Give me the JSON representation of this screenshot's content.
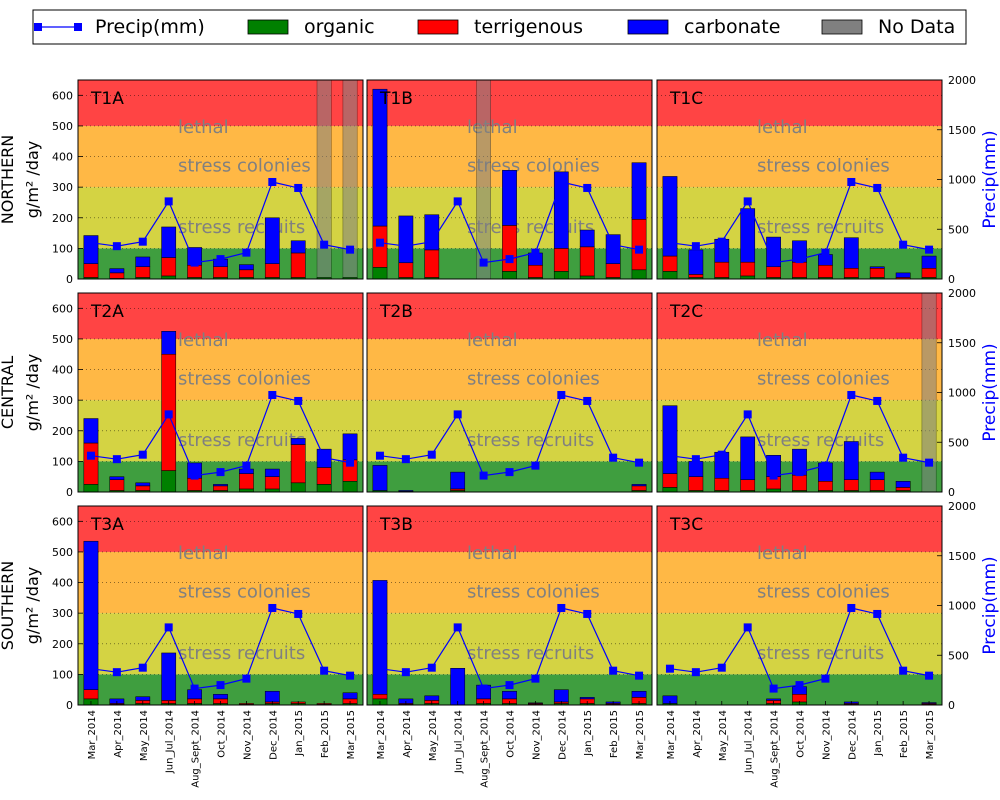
{
  "colors": {
    "lethal": "#ff4444",
    "stress_colonies": "#ffb845",
    "stress_recruits": "#d4d343",
    "ok": "#3f9e3f",
    "organic": "#008000",
    "terrigenous": "#ff0000",
    "carbonate": "#0000ff",
    "precip": "#0000ff",
    "nodata": "#808080",
    "zone_text": "#808080"
  },
  "legend": {
    "items": [
      {
        "key": "precip",
        "label": "Precip(mm)"
      },
      {
        "key": "organic",
        "label": "organic"
      },
      {
        "key": "terrigenous",
        "label": "terrigenous"
      },
      {
        "key": "carbonate",
        "label": "carbonate"
      },
      {
        "key": "nodata",
        "label": "No Data"
      }
    ]
  },
  "zones": {
    "lethal": "lethal",
    "stress_colonies": "stress colonies",
    "stress_recruits": "stress recruits"
  },
  "row_labels": [
    "NORTHERN",
    "CENTRAL",
    "SOUTHERN"
  ],
  "y_label": "g/m² /day",
  "y2_label": "Precip(mm)",
  "chart_data": {
    "type": "bar",
    "categories": [
      "Mar_2014",
      "Apr_2014",
      "May_2014",
      "Jun_Jul_2014",
      "Aug_Sept_2014",
      "Oct_2014",
      "Nov_2014",
      "Dec_2014",
      "Jan_2015",
      "Feb_2015",
      "Mar_2015"
    ],
    "ylim": [
      0,
      650
    ],
    "yticks": [
      0,
      100,
      200,
      300,
      400,
      500,
      600
    ],
    "y2lim": [
      0,
      2000
    ],
    "y2ticks": [
      0,
      500,
      1000,
      1500,
      2000
    ],
    "zone_bounds": [
      100,
      300,
      500
    ],
    "precip": [
      365,
      330,
      375,
      780,
      165,
      200,
      265,
      975,
      915,
      345,
      295
    ],
    "panels": [
      {
        "title": "T1A",
        "row": 0,
        "col": 0,
        "organic": [
          5,
          2,
          5,
          10,
          5,
          5,
          5,
          5,
          5,
          5,
          5
        ],
        "terrigenous": [
          45,
          18,
          35,
          60,
          40,
          35,
          25,
          45,
          80,
          0,
          0
        ],
        "carbonate": [
          92,
          14,
          32,
          100,
          58,
          25,
          17,
          150,
          40,
          0,
          0
        ],
        "nodata": [
          false,
          false,
          false,
          false,
          false,
          false,
          false,
          false,
          false,
          true,
          true
        ]
      },
      {
        "title": "T1B",
        "row": 0,
        "col": 1,
        "organic": [
          38,
          5,
          5,
          0,
          0,
          25,
          5,
          25,
          10,
          5,
          30
        ],
        "terrigenous": [
          135,
          48,
          90,
          0,
          0,
          150,
          40,
          75,
          95,
          45,
          165
        ],
        "carbonate": [
          447,
          153,
          115,
          0,
          0,
          180,
          40,
          250,
          55,
          95,
          185
        ],
        "nodata": [
          false,
          false,
          false,
          false,
          true,
          false,
          false,
          false,
          false,
          false,
          false
        ]
      },
      {
        "title": "T1C",
        "row": 0,
        "col": 2,
        "organic": [
          25,
          5,
          5,
          10,
          5,
          5,
          5,
          5,
          5,
          0,
          5
        ],
        "terrigenous": [
          50,
          10,
          50,
          45,
          35,
          50,
          40,
          30,
          30,
          5,
          30
        ],
        "carbonate": [
          260,
          80,
          75,
          175,
          97,
          70,
          35,
          100,
          5,
          15,
          40
        ],
        "nodata": [
          false,
          false,
          false,
          false,
          false,
          false,
          false,
          false,
          false,
          false,
          false
        ]
      },
      {
        "title": "T2A",
        "row": 1,
        "col": 0,
        "organic": [
          25,
          5,
          5,
          70,
          5,
          5,
          10,
          10,
          30,
          25,
          35
        ],
        "terrigenous": [
          135,
          35,
          15,
          380,
          40,
          15,
          50,
          40,
          125,
          55,
          70
        ],
        "carbonate": [
          80,
          10,
          10,
          75,
          50,
          5,
          15,
          25,
          20,
          60,
          85
        ],
        "nodata": [
          false,
          false,
          false,
          false,
          false,
          false,
          false,
          false,
          false,
          false,
          false
        ]
      },
      {
        "title": "T2B",
        "row": 1,
        "col": 1,
        "organic": [
          5,
          0,
          0,
          5,
          0,
          0,
          0,
          0,
          0,
          0,
          5
        ],
        "terrigenous": [
          0,
          2,
          0,
          5,
          0,
          0,
          0,
          0,
          0,
          0,
          15
        ],
        "carbonate": [
          82,
          3,
          0,
          55,
          0,
          0,
          0,
          0,
          0,
          0,
          5
        ],
        "nodata": [
          false,
          false,
          false,
          false,
          false,
          false,
          false,
          false,
          false,
          false,
          false
        ]
      },
      {
        "title": "T2C",
        "row": 1,
        "col": 2,
        "organic": [
          15,
          5,
          5,
          5,
          10,
          5,
          5,
          5,
          5,
          5,
          0
        ],
        "terrigenous": [
          45,
          45,
          40,
          35,
          40,
          50,
          30,
          35,
          35,
          10,
          0
        ],
        "carbonate": [
          222,
          50,
          85,
          140,
          70,
          85,
          60,
          125,
          25,
          20,
          0
        ],
        "nodata": [
          false,
          false,
          false,
          false,
          false,
          false,
          false,
          false,
          false,
          false,
          true
        ]
      },
      {
        "title": "T3A",
        "row": 2,
        "col": 0,
        "organic": [
          20,
          2,
          5,
          5,
          5,
          5,
          2,
          5,
          5,
          2,
          5
        ],
        "terrigenous": [
          30,
          3,
          10,
          10,
          15,
          15,
          3,
          5,
          5,
          3,
          15
        ],
        "carbonate": [
          485,
          15,
          12,
          155,
          30,
          15,
          0,
          35,
          0,
          0,
          20
        ],
        "nodata": [
          false,
          false,
          false,
          false,
          false,
          false,
          false,
          false,
          false,
          false,
          false
        ]
      },
      {
        "title": "T3B",
        "row": 2,
        "col": 1,
        "organic": [
          20,
          2,
          5,
          0,
          5,
          5,
          2,
          5,
          5,
          2,
          5
        ],
        "terrigenous": [
          15,
          3,
          10,
          0,
          15,
          15,
          3,
          5,
          15,
          3,
          20
        ],
        "carbonate": [
          372,
          15,
          15,
          120,
          45,
          25,
          2,
          40,
          5,
          5,
          20
        ],
        "nodata": [
          false,
          false,
          false,
          false,
          false,
          false,
          false,
          false,
          false,
          false,
          false
        ]
      },
      {
        "title": "T3C",
        "row": 2,
        "col": 2,
        "organic": [
          5,
          0,
          0,
          0,
          5,
          10,
          0,
          2,
          0,
          0,
          2
        ],
        "terrigenous": [
          0,
          0,
          0,
          0,
          10,
          25,
          0,
          3,
          0,
          0,
          3
        ],
        "carbonate": [
          25,
          0,
          0,
          0,
          5,
          25,
          0,
          5,
          0,
          0,
          3
        ],
        "nodata": [
          false,
          false,
          false,
          false,
          false,
          false,
          false,
          false,
          false,
          false,
          false
        ]
      }
    ]
  }
}
